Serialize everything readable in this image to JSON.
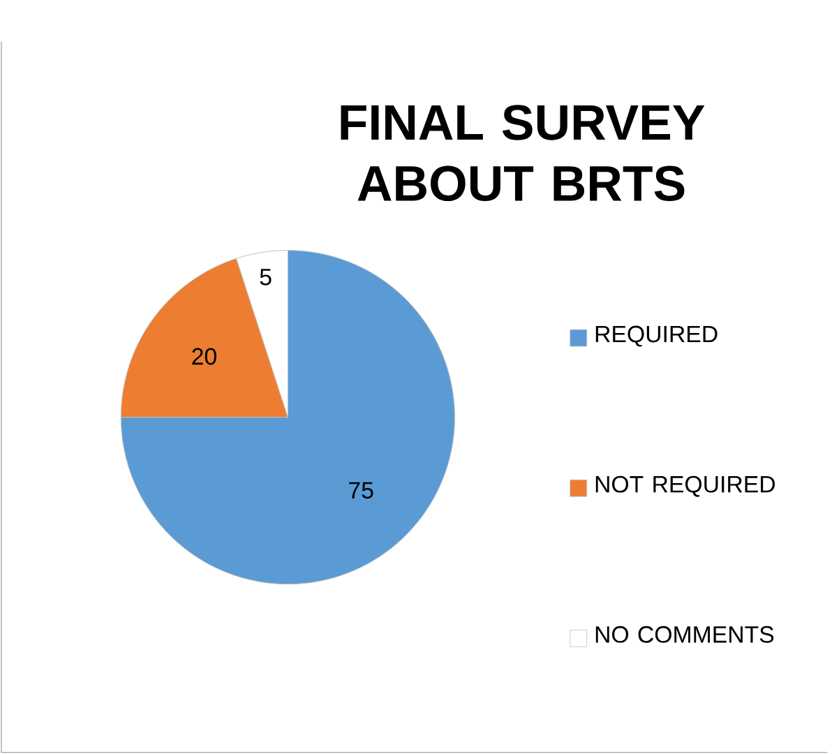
{
  "chart_data": {
    "type": "pie",
    "title": "FINAL SURVEY ABOUT BRTS",
    "categories": [
      "REQUIRED",
      "NOT REQUIRED",
      "NO COMMENTS"
    ],
    "values": [
      75,
      20,
      5
    ],
    "colors": [
      "#5b9bd5",
      "#ed7d31",
      "#ffffff"
    ],
    "data_labels": true,
    "legend": "right"
  }
}
